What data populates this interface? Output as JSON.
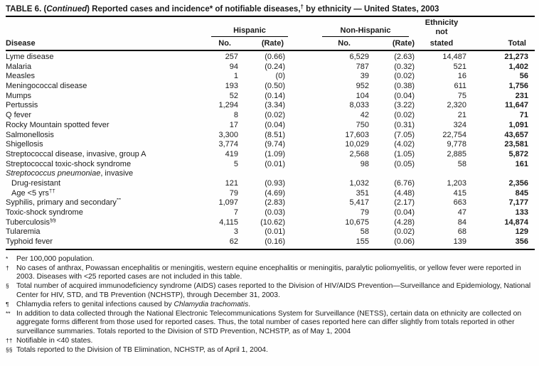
{
  "title": {
    "p1": "TABLE 6. (",
    "italic": "Continued",
    "p2": ") Reported cases and incidence* of notifiable diseases,",
    "sup": "†",
    "p3": " by ethnicity — United States, 2003"
  },
  "header": {
    "disease": "Disease",
    "hispanic": "Hispanic",
    "non_hispanic": "Non-Hispanic",
    "no": "No.",
    "rate": "(Rate)",
    "ethnicity_line1": "Ethnicity",
    "ethnicity_line2": "not",
    "ethnicity_line3": "stated",
    "total": "Total"
  },
  "rows": [
    {
      "name": "Lyme disease",
      "h_no": "257",
      "h_rate": "(0.66)",
      "nh_no": "6,529",
      "nh_rate": "(2.63)",
      "eth": "14,487",
      "total": "21,273"
    },
    {
      "name": "Malaria",
      "h_no": "94",
      "h_rate": "(0.24)",
      "nh_no": "787",
      "nh_rate": "(0.32)",
      "eth": "521",
      "total": "1,402"
    },
    {
      "name": "Measles",
      "h_no": "1",
      "h_rate": "(0)",
      "nh_no": "39",
      "nh_rate": "(0.02)",
      "eth": "16",
      "total": "56"
    },
    {
      "name": "Meningococcal disease",
      "h_no": "193",
      "h_rate": "(0.50)",
      "nh_no": "952",
      "nh_rate": "(0.38)",
      "eth": "611",
      "total": "1,756"
    },
    {
      "name": "Mumps",
      "h_no": "52",
      "h_rate": "(0.14)",
      "nh_no": "104",
      "nh_rate": "(0.04)",
      "eth": "75",
      "total": "231"
    },
    {
      "name": "Pertussis",
      "h_no": "1,294",
      "h_rate": "(3.34)",
      "nh_no": "8,033",
      "nh_rate": "(3.22)",
      "eth": "2,320",
      "total": "11,647"
    },
    {
      "name": "Q fever",
      "h_no": "8",
      "h_rate": "(0.02)",
      "nh_no": "42",
      "nh_rate": "(0.02)",
      "eth": "21",
      "total": "71"
    },
    {
      "name": "Rocky Mountain spotted fever",
      "h_no": "17",
      "h_rate": "(0.04)",
      "nh_no": "750",
      "nh_rate": "(0.31)",
      "eth": "324",
      "total": "1,091"
    },
    {
      "name": "Salmonellosis",
      "h_no": "3,300",
      "h_rate": "(8.51)",
      "nh_no": "17,603",
      "nh_rate": "(7.05)",
      "eth": "22,754",
      "total": "43,657"
    },
    {
      "name": "Shigellosis",
      "h_no": "3,774",
      "h_rate": "(9.74)",
      "nh_no": "10,029",
      "nh_rate": "(4.02)",
      "eth": "9,778",
      "total": "23,581"
    },
    {
      "name": "Streptococcal disease, invasive, group A",
      "h_no": "419",
      "h_rate": "(1.09)",
      "nh_no": "2,568",
      "nh_rate": "(1.05)",
      "eth": "2,885",
      "total": "5,872"
    },
    {
      "name": "Streptococcal toxic-shock syndrome",
      "h_no": "5",
      "h_rate": "(0.01)",
      "nh_no": "98",
      "nh_rate": "(0.05)",
      "eth": "58",
      "total": "161"
    },
    {
      "name_italic": "Streptococcus pneumoniae",
      "name_suffix": ", invasive",
      "section": true
    },
    {
      "name": "Drug-resistant",
      "indent": true,
      "h_no": "121",
      "h_rate": "(0.93)",
      "nh_no": "1,032",
      "nh_rate": "(6.76)",
      "eth": "1,203",
      "total": "2,356"
    },
    {
      "name": "Age <5 yrs",
      "sup": "††",
      "indent": true,
      "h_no": "79",
      "h_rate": "(4.69)",
      "nh_no": "351",
      "nh_rate": "(4.48)",
      "eth": "415",
      "total": "845"
    },
    {
      "name": "Syphilis, primary and secondary",
      "sup": "**",
      "h_no": "1,097",
      "h_rate": "(2.83)",
      "nh_no": "5,417",
      "nh_rate": "(2.17)",
      "eth": "663",
      "total": "7,177"
    },
    {
      "name": "Toxic-shock syndrome",
      "h_no": "7",
      "h_rate": "(0.03)",
      "nh_no": "79",
      "nh_rate": "(0.04)",
      "eth": "47",
      "total": "133"
    },
    {
      "name": "Tuberculosis",
      "sup": "§§",
      "h_no": "4,115",
      "h_rate": "(10.62)",
      "nh_no": "10,675",
      "nh_rate": "(4.28)",
      "eth": "84",
      "total": "14,874"
    },
    {
      "name": "Tularemia",
      "h_no": "3",
      "h_rate": "(0.01)",
      "nh_no": "58",
      "nh_rate": "(0.02)",
      "eth": "68",
      "total": "129"
    },
    {
      "name": "Typhoid fever",
      "h_no": "62",
      "h_rate": "(0.16)",
      "nh_no": "155",
      "nh_rate": "(0.06)",
      "eth": "139",
      "total": "356"
    }
  ],
  "footnotes": [
    {
      "sym": "*",
      "text": "Per 100,000 population."
    },
    {
      "sym": "†",
      "text": "No cases of anthrax, Powassan encephalitis or meningitis, western equine encephalitis or meningitis, paralytic poliomyelitis, or yellow fever were reported in 2003. Diseases with <25 reported cases are not included in this table."
    },
    {
      "sym": "§",
      "text": "Total number of acquired immunodeficiency syndrome (AIDS) cases reported to the Division of HIV/AIDS Prevention—Surveillance and Epidemiology, National Center for HIV, STD, and TB Prevention (NCHSTP), through December 31, 2003."
    },
    {
      "sym": "¶",
      "text": "Chlamydia refers to genital infections caused by ",
      "italic": "Chlamydia trachomatis",
      "tail": "."
    },
    {
      "sym": "**",
      "text": "In addition to data collected through the National Electronic Telecommunications System for Surveillance (NETSS), certain data on ethnicity are collected on aggregate forms different from those used for reported cases. Thus, the total number of cases reported here can differ slightly from totals reported in other surveillance summaries. Totals reported to the Division of STD Prevention, NCHSTP, as of May 1, 2004"
    },
    {
      "sym": "††",
      "text": "Notifiable in <40 states."
    },
    {
      "sym": "§§",
      "text": "Totals reported to the Division of TB Elimination, NCHSTP, as of April 1, 2004."
    }
  ]
}
